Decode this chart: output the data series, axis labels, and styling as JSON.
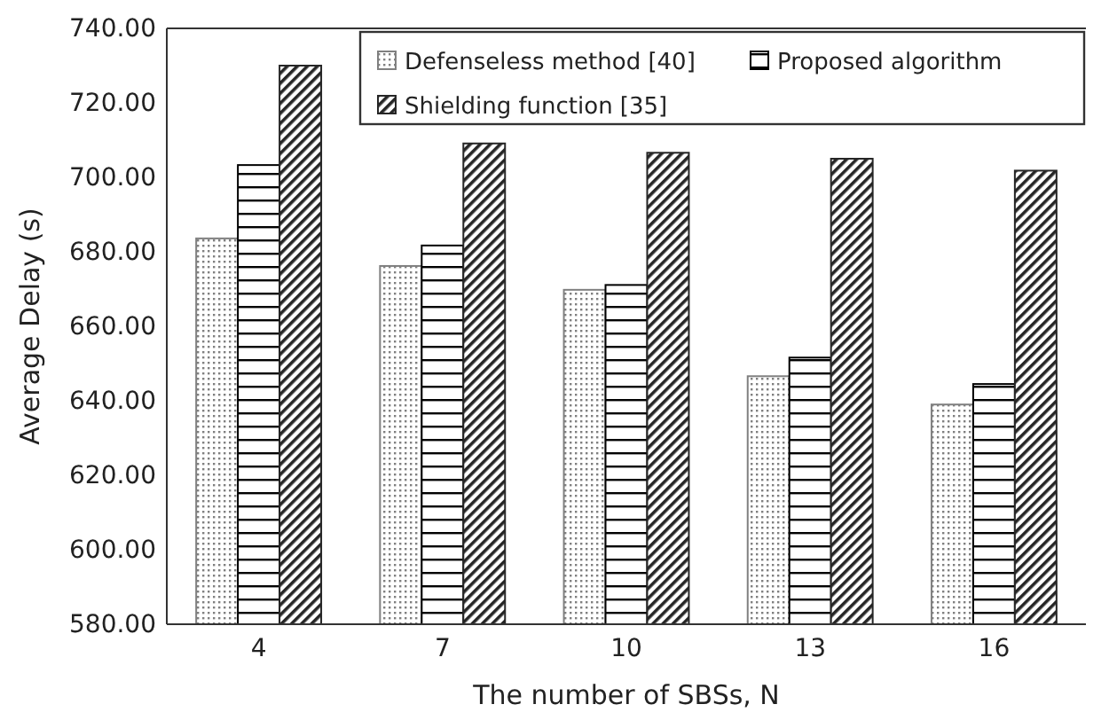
{
  "chart_data": {
    "type": "bar",
    "xlabel": "The number of SBSs, N",
    "ylabel": "Average Delay (s)",
    "categories": [
      "4",
      "7",
      "10",
      "13",
      "16"
    ],
    "series": [
      {
        "name": "Defenseless method [40]",
        "color": "#808080",
        "values": [
          683.6,
          676.2,
          669.8,
          646.6,
          639.0
        ]
      },
      {
        "name": "Proposed algorithm",
        "color": "#000000",
        "values": [
          703.3,
          681.7,
          671.1,
          651.6,
          644.5
        ]
      },
      {
        "name": "Shielding function [35]",
        "color": "#262626",
        "values": [
          730.0,
          709.1,
          706.6,
          705.0,
          701.8
        ]
      }
    ],
    "ylim": [
      580,
      740
    ],
    "yticks": [
      {
        "value": 580,
        "label": "580.00"
      },
      {
        "value": 600,
        "label": "600.00"
      },
      {
        "value": 620,
        "label": "620.00"
      },
      {
        "value": 640,
        "label": "640.00"
      },
      {
        "value": 660,
        "label": "660.00"
      },
      {
        "value": 680,
        "label": "680.00"
      },
      {
        "value": 700,
        "label": "700.00"
      },
      {
        "value": 720,
        "label": "720.00"
      },
      {
        "value": 740,
        "label": "740.00"
      }
    ],
    "grid": false,
    "legend": "top"
  }
}
